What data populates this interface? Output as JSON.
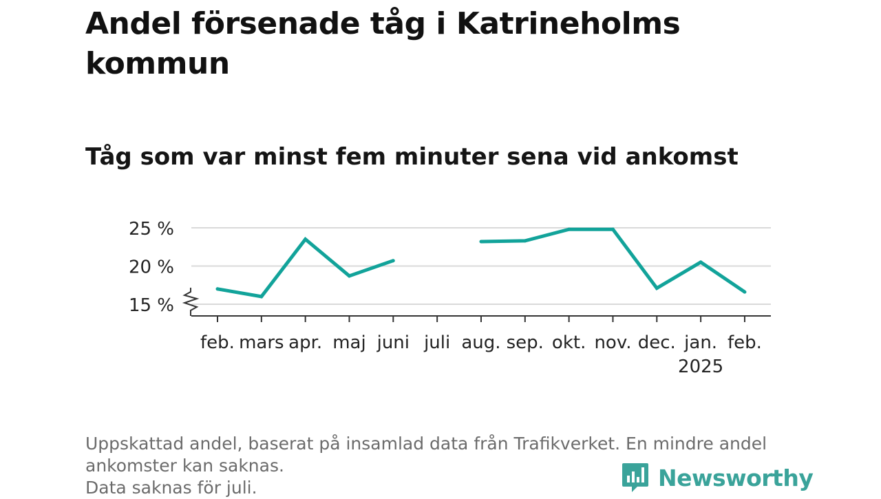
{
  "title": "Andel försenade tåg i Katrineholms kommun",
  "subtitle": "Tåg som var minst fem minuter sena vid ankomst",
  "footnote": {
    "line1": "Uppskattad andel, baserat på insamlad data från Trafikverket. En mindre andel",
    "line2": "ankomster kan saknas.",
    "line3": "Data saknas för juli."
  },
  "brand": {
    "name": "Newsworthy"
  },
  "colors": {
    "line": "#12a39a",
    "grid": "#d9d9d9",
    "axis": "#333333",
    "brand": "#3aa39a"
  },
  "chart_data": {
    "type": "line",
    "title": "Andel försenade tåg i Katrineholms kommun",
    "subtitle": "Tåg som var minst fem minuter sena vid ankomst",
    "categories": [
      "feb.",
      "mars",
      "apr.",
      "maj",
      "juni",
      "juli",
      "aug.",
      "sep.",
      "okt.",
      "nov.",
      "dec.",
      "jan.",
      "feb."
    ],
    "year_label": {
      "category_index": 11,
      "text": "2025"
    },
    "series": [
      {
        "values": [
          17.0,
          16.0,
          23.5,
          18.7,
          20.7,
          null,
          23.2,
          23.3,
          24.8,
          24.8,
          17.1,
          20.5,
          16.6
        ]
      }
    ],
    "yticks": [
      {
        "value": 15,
        "label": "15 %"
      },
      {
        "value": 20,
        "label": "20 %"
      },
      {
        "value": 25,
        "label": "25 %"
      }
    ],
    "ylim": [
      14,
      25
    ],
    "axis_break": true,
    "grid": true,
    "missing": [
      "juli"
    ]
  }
}
